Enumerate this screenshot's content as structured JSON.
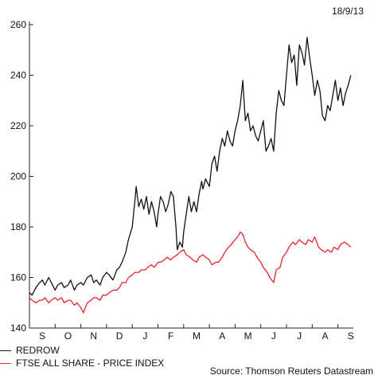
{
  "date_label": "18/9/13",
  "source": "Source: Thomson Reuters Datastream",
  "colors": {
    "redrow": "#111111",
    "ftse": "#e8262a",
    "axis": "#222222"
  },
  "chart_data": {
    "type": "line",
    "title": "",
    "xlabel": "",
    "ylabel": "",
    "ylim": [
      140,
      260
    ],
    "yticks": [
      140,
      160,
      180,
      200,
      220,
      240,
      260
    ],
    "x_categories": [
      "S",
      "O",
      "N",
      "D",
      "J",
      "F",
      "M",
      "A",
      "M",
      "J",
      "J",
      "A",
      "S"
    ],
    "x_range_months": [
      0,
      12.6
    ],
    "legend_position": "bottom-left",
    "grid": false,
    "series": [
      {
        "name": "REDROW",
        "color": "#111111",
        "x": [
          0.0,
          0.1,
          0.25,
          0.4,
          0.5,
          0.6,
          0.75,
          0.85,
          1.0,
          1.1,
          1.25,
          1.35,
          1.5,
          1.6,
          1.75,
          1.85,
          2.0,
          2.1,
          2.25,
          2.4,
          2.5,
          2.6,
          2.75,
          2.85,
          3.0,
          3.1,
          3.25,
          3.4,
          3.5,
          3.6,
          3.75,
          3.85,
          4.0,
          4.1,
          4.15,
          4.25,
          4.35,
          4.45,
          4.55,
          4.65,
          4.75,
          4.85,
          4.95,
          5.0,
          5.1,
          5.2,
          5.3,
          5.4,
          5.5,
          5.6,
          5.7,
          5.75,
          5.85,
          5.95,
          6.0,
          6.1,
          6.2,
          6.3,
          6.4,
          6.5,
          6.6,
          6.7,
          6.75,
          6.85,
          6.95,
          7.0,
          7.1,
          7.2,
          7.3,
          7.4,
          7.5,
          7.6,
          7.7,
          7.8,
          7.9,
          8.0,
          8.1,
          8.2,
          8.3,
          8.4,
          8.5,
          8.6,
          8.7,
          8.8,
          8.9,
          9.0,
          9.1,
          9.2,
          9.3,
          9.4,
          9.5,
          9.6,
          9.7,
          9.8,
          9.9,
          10.0,
          10.1,
          10.2,
          10.3,
          10.4,
          10.5,
          10.6,
          10.7,
          10.8,
          10.9,
          11.0,
          11.1,
          11.2,
          11.3,
          11.4,
          11.5,
          11.6,
          11.7,
          11.8,
          11.9,
          12.0,
          12.1,
          12.2,
          12.3,
          12.4,
          12.5
        ],
        "values": [
          154,
          153,
          156,
          158,
          159,
          157,
          160,
          158,
          155,
          157,
          158,
          156,
          157,
          159,
          155,
          157,
          158,
          157,
          160,
          161,
          158,
          159,
          157,
          160,
          162,
          161,
          159,
          163,
          164,
          166,
          170,
          175,
          180,
          190,
          196,
          188,
          191,
          187,
          192,
          185,
          190,
          186,
          180,
          185,
          192,
          190,
          186,
          189,
          194,
          192,
          180,
          171,
          174,
          172,
          178,
          185,
          192,
          186,
          190,
          186,
          193,
          198,
          195,
          199,
          197,
          196,
          205,
          208,
          202,
          210,
          215,
          212,
          218,
          214,
          212,
          218,
          222,
          228,
          238,
          222,
          225,
          218,
          220,
          216,
          214,
          218,
          222,
          210,
          212,
          215,
          210,
          225,
          234,
          230,
          228,
          240,
          252,
          245,
          248,
          236,
          252,
          249,
          244,
          255,
          247,
          240,
          232,
          238,
          234,
          224,
          222,
          228,
          226,
          232,
          238,
          230,
          235,
          228,
          233,
          236,
          240
        ]
      },
      {
        "name": "FTSE ALL SHARE - PRICE INDEX",
        "color": "#e8262a",
        "x": [
          0.0,
          0.1,
          0.25,
          0.4,
          0.5,
          0.6,
          0.75,
          0.85,
          1.0,
          1.1,
          1.25,
          1.35,
          1.5,
          1.6,
          1.75,
          1.85,
          2.0,
          2.1,
          2.25,
          2.4,
          2.5,
          2.6,
          2.75,
          2.85,
          3.0,
          3.1,
          3.25,
          3.4,
          3.5,
          3.6,
          3.75,
          3.85,
          4.0,
          4.1,
          4.25,
          4.35,
          4.5,
          4.6,
          4.75,
          4.85,
          5.0,
          5.1,
          5.25,
          5.35,
          5.5,
          5.6,
          5.75,
          5.85,
          6.0,
          6.1,
          6.25,
          6.35,
          6.5,
          6.6,
          6.75,
          6.85,
          7.0,
          7.1,
          7.25,
          7.35,
          7.5,
          7.6,
          7.75,
          7.85,
          8.0,
          8.1,
          8.2,
          8.3,
          8.4,
          8.5,
          8.6,
          8.75,
          8.85,
          9.0,
          9.1,
          9.25,
          9.35,
          9.5,
          9.6,
          9.75,
          9.85,
          10.0,
          10.1,
          10.25,
          10.35,
          10.5,
          10.6,
          10.75,
          10.85,
          11.0,
          11.1,
          11.25,
          11.35,
          11.5,
          11.6,
          11.75,
          11.85,
          12.0,
          12.1,
          12.25,
          12.4,
          12.5
        ],
        "values": [
          152,
          151,
          150,
          151,
          151,
          152,
          150,
          151,
          152,
          151,
          152,
          150,
          151,
          151,
          149,
          150,
          148,
          146,
          150,
          151,
          152,
          152,
          151,
          153,
          153,
          154,
          155,
          155,
          156,
          158,
          158,
          160,
          161,
          162,
          162,
          163,
          163,
          164,
          165,
          164,
          166,
          166,
          167,
          168,
          167,
          168,
          169,
          170,
          171,
          169,
          168,
          167,
          166,
          168,
          169,
          168,
          167,
          165,
          166,
          166,
          168,
          170,
          172,
          173,
          175,
          176,
          178,
          177,
          174,
          172,
          171,
          170,
          168,
          166,
          164,
          162,
          160,
          158,
          163,
          164,
          168,
          170,
          172,
          174,
          173,
          175,
          174,
          173,
          175,
          174,
          176,
          172,
          171,
          170,
          171,
          170,
          172,
          171,
          173,
          174,
          173,
          172
        ]
      }
    ]
  }
}
